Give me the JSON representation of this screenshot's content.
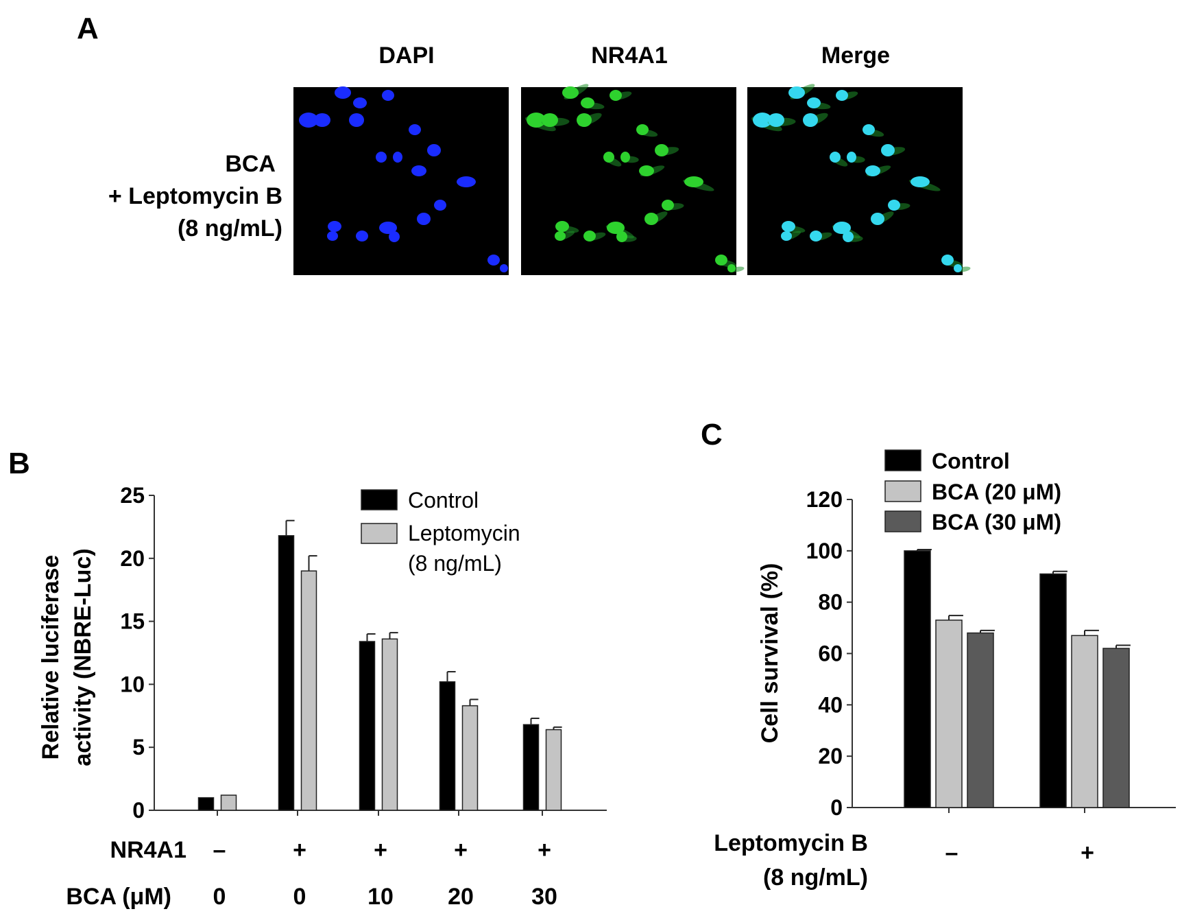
{
  "panel_a": {
    "letter": "A",
    "column_headers": [
      "DAPI",
      "NR4A1",
      "Merge"
    ],
    "row_label": [
      "BCA",
      "+ Leptomycin  B",
      "(8 ng/mL)"
    ],
    "channel_colors": {
      "DAPI": "#1a2cff",
      "NR4A1": "#2ed22e",
      "Merge": "#35d8ee"
    }
  },
  "chart_data": [
    {
      "panel": "B",
      "type": "bar",
      "ylabel_lines": [
        "Relative luciferase",
        "activity (NBRE-Luc)"
      ],
      "ylim": [
        0,
        25
      ],
      "yticks": [
        0,
        5,
        10,
        15,
        20,
        25
      ],
      "condition_rows": [
        {
          "label": "NR4A1",
          "values": [
            "–",
            "+",
            "+",
            "+",
            "+"
          ]
        },
        {
          "label": "BCA (μM)",
          "values": [
            "0",
            "0",
            "10",
            "20",
            "30"
          ]
        }
      ],
      "legend_position": "top-right",
      "series": [
        {
          "name": "Control",
          "color": "#000000",
          "values": [
            1.0,
            21.8,
            13.4,
            10.2,
            6.8
          ],
          "errors": [
            0,
            1.2,
            0.6,
            0.8,
            0.5
          ]
        },
        {
          "name_lines": [
            "Leptomycin",
            "(8 ng/mL)"
          ],
          "color": "#c4c4c4",
          "values": [
            1.2,
            19.0,
            13.6,
            8.3,
            6.4
          ],
          "errors": [
            0,
            1.2,
            0.5,
            0.5,
            0.2
          ]
        }
      ]
    },
    {
      "panel": "C",
      "type": "bar",
      "ylabel": "Cell survival (%)",
      "ylim": [
        0,
        120
      ],
      "yticks": [
        0,
        20,
        40,
        60,
        80,
        100,
        120
      ],
      "condition_label_lines": [
        "Leptomycin B",
        "(8 ng/mL)"
      ],
      "categories": [
        "–",
        "+"
      ],
      "legend_position": "top-left",
      "series": [
        {
          "name": "Control",
          "color": "#000000",
          "values": [
            100,
            91
          ],
          "errors": [
            0.5,
            1.0
          ]
        },
        {
          "name": "BCA (20 μM)",
          "color": "#c4c4c4",
          "values": [
            73,
            67
          ],
          "errors": [
            1.8,
            2.0
          ]
        },
        {
          "name": "BCA (30 μM)",
          "color": "#5a5a5a",
          "values": [
            68,
            62
          ],
          "errors": [
            1.0,
            1.2
          ]
        }
      ]
    }
  ]
}
